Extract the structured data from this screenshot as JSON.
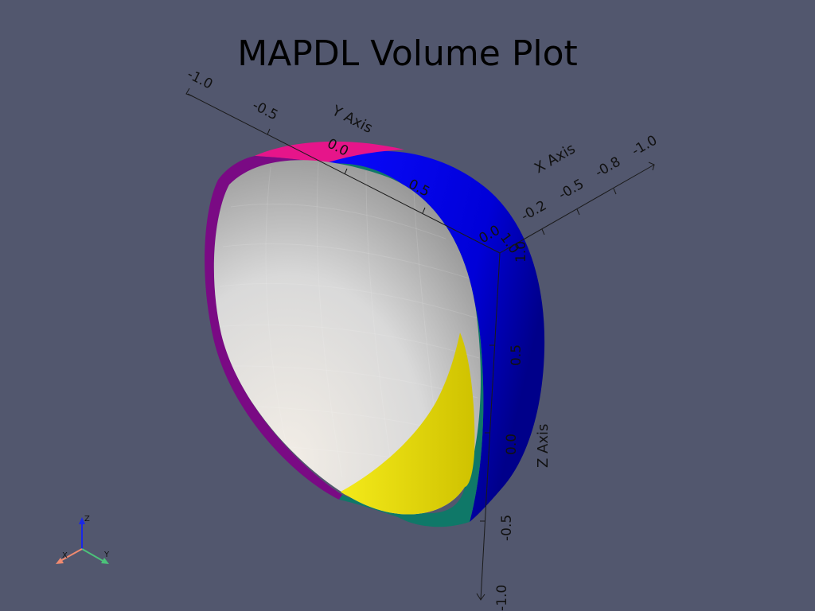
{
  "title": "MAPDL Volume Plot",
  "axes": {
    "y": {
      "title": "Y Axis",
      "ticks": [
        "-1.0",
        "-0.5",
        "0.0",
        "0.5",
        "1.0"
      ]
    },
    "x": {
      "title": "X Axis",
      "ticks": [
        "0.0",
        "-0.2",
        "-0.5",
        "-0.8",
        "-1.0"
      ]
    },
    "z": {
      "title": "Z Axis",
      "ticks": [
        "1.0",
        "0.5",
        "0.0",
        "-0.5",
        "-1.0"
      ]
    }
  },
  "orientation_triad": {
    "x_label": "X",
    "y_label": "Y",
    "z_label": "Z",
    "x_color": "#f08a70",
    "y_color": "#4cc27a",
    "z_color": "#1a28e6"
  },
  "volumes": [
    {
      "name": "outer-surface-blue",
      "color": "#0000ee"
    },
    {
      "name": "outer-surface-magenta",
      "color": "#e6158a"
    },
    {
      "name": "rim-purple",
      "color": "#7a0a84"
    },
    {
      "name": "rim-teal",
      "color": "#0f7868"
    },
    {
      "name": "inner-surface-white",
      "color": "#efefef"
    },
    {
      "name": "inner-surface-yellow",
      "color": "#f0e200"
    }
  ],
  "colors": {
    "background": "#52576e"
  }
}
